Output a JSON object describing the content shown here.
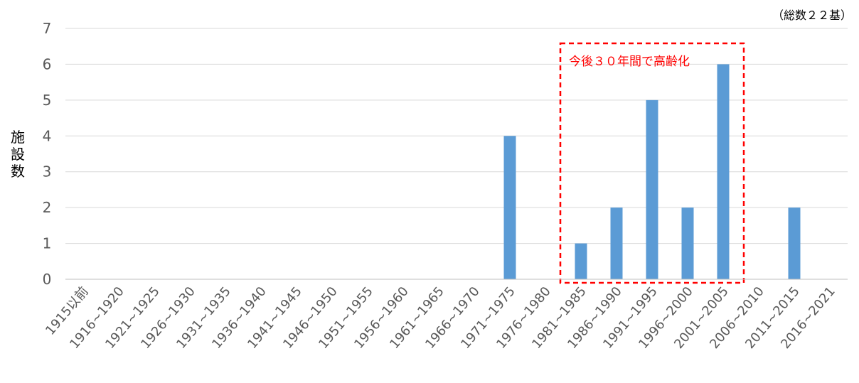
{
  "chart_data": {
    "type": "bar",
    "ylabel": "施設数",
    "total_note": "（総数２２基）",
    "annotation": "今後３０年間で高齢化",
    "ylim": [
      0,
      7
    ],
    "yticks": [
      0,
      1,
      2,
      3,
      4,
      5,
      6,
      7
    ],
    "grid": true,
    "categories": [
      "1915以前",
      "1916~1920",
      "1921~1925",
      "1926~1930",
      "1931~1935",
      "1936~1940",
      "1941~1945",
      "1946~1950",
      "1951~1955",
      "1956~1960",
      "1961~1965",
      "1966~1970",
      "1971~1975",
      "1976~1980",
      "1981~1985",
      "1986~1990",
      "1991~1995",
      "1996~2000",
      "2001~2005",
      "2006~2010",
      "2011~2015",
      "2016~2021"
    ],
    "values": [
      0,
      0,
      0,
      0,
      0,
      0,
      0,
      0,
      0,
      0,
      0,
      0,
      4,
      0,
      1,
      2,
      5,
      2,
      6,
      0,
      2,
      0
    ],
    "highlight_range": [
      "1981~1985",
      "2001~2005"
    ],
    "colors": {
      "bar": "#5b9bd5",
      "grid": "#d9d9d9",
      "highlight_border": "#ff0000"
    }
  }
}
